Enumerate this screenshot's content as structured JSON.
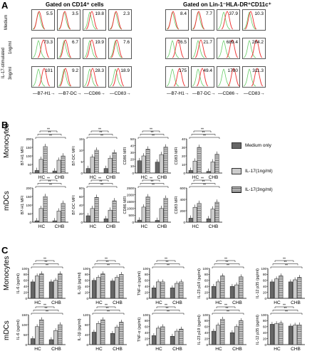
{
  "panelA": {
    "letter": "A",
    "header_left": "Gated on CD14⁺ cells",
    "header_right": "Gated on Lin-1⁻HLA-DR⁺CD11c⁺",
    "row_medium": "Medium",
    "row_stim": "IL-17-stimulated",
    "row_1ng": "1ng/ml",
    "row_3ng": "3ng/ml",
    "markers": [
      "B7-H1",
      "B7-DC",
      "CD86",
      "CD83"
    ],
    "left_values": [
      [
        "5.5",
        "3.5",
        "19.8",
        "2.3"
      ],
      [
        "73.3",
        "6.7",
        "19.9",
        "7.6"
      ],
      [
        "101",
        "9.2",
        "28.3",
        "18.9"
      ]
    ],
    "right_values": [
      [
        "8.4",
        "7.7",
        "37.9",
        "10.3"
      ],
      [
        "76.5",
        "21.7",
        "689.4",
        "284.2"
      ],
      [
        "175",
        "49.4",
        "1780",
        "311.3"
      ]
    ]
  },
  "panelB": {
    "letter": "B",
    "row_labels": [
      "Monocytes",
      "mDCs"
    ],
    "ylabels": [
      "B7-H1 MFI",
      "B7-DC MFI",
      "CD86 MFI",
      "CD83 MFI"
    ],
    "groups": [
      "HC",
      "CHB"
    ],
    "legend": [
      "Medium only",
      "IL-17(1ng/ml)",
      "IL-17(3ng/ml)"
    ],
    "sig": "**"
  },
  "panelC": {
    "letter": "C",
    "row_labels": [
      "Monocytes",
      "mDCs"
    ],
    "ylabels": [
      "IL-6 (pg/ml)",
      "IL-1β (pg/ml)",
      "TNF-α (pg/ml)",
      "IL-23 p19 (pg/ml)",
      "IL-12 p35 (pg/ml)"
    ],
    "groups": [
      "HC",
      "CHB"
    ]
  },
  "chart_data": [
    {
      "type": "bar",
      "panel": "B",
      "row": "Monocytes",
      "ylabel": "B7-H1 MFI",
      "categories": [
        "HC",
        "CHB"
      ],
      "ylim": [
        0,
        200
      ],
      "yticks": [
        "0",
        "50",
        "100",
        "150",
        "200"
      ],
      "series": [
        {
          "name": "Medium only",
          "values": [
            15,
            12
          ]
        },
        {
          "name": "IL-17(1ng/ml)",
          "values": [
            80,
            75
          ]
        },
        {
          "name": "IL-17(3ng/ml)",
          "values": [
            155,
            100
          ]
        }
      ]
    },
    {
      "type": "bar",
      "panel": "B",
      "row": "Monocytes",
      "ylabel": "B7-DC MFI",
      "categories": [
        "HC",
        "CHB"
      ],
      "ylim": [
        0,
        15
      ],
      "yticks": [
        "0",
        "5",
        "10",
        "15"
      ],
      "series": [
        {
          "name": "Medium only",
          "values": [
            2,
            2
          ]
        },
        {
          "name": "IL-17(1ng/ml)",
          "values": [
            7,
            6.5
          ]
        },
        {
          "name": "IL-17(3ng/ml)",
          "values": [
            10,
            9
          ]
        }
      ]
    },
    {
      "type": "bar",
      "panel": "B",
      "row": "Monocytes",
      "ylabel": "CD86 MFI",
      "categories": [
        "HC",
        "CHB"
      ],
      "ylim": [
        0,
        50
      ],
      "yticks": [
        "0",
        "10",
        "20",
        "30",
        "40",
        "50"
      ],
      "series": [
        {
          "name": "Medium only",
          "values": [
            18,
            16
          ]
        },
        {
          "name": "IL-17(1ng/ml)",
          "values": [
            25,
            27
          ]
        },
        {
          "name": "IL-17(3ng/ml)",
          "values": [
            35,
            38
          ]
        }
      ]
    },
    {
      "type": "bar",
      "panel": "B",
      "row": "Monocytes",
      "ylabel": "CD83 MFI",
      "categories": [
        "HC",
        "CHB"
      ],
      "ylim": [
        0,
        40
      ],
      "yticks": [
        "0",
        "10",
        "20",
        "30",
        "40"
      ],
      "series": [
        {
          "name": "Medium only",
          "values": [
            3,
            2
          ]
        },
        {
          "name": "IL-17(1ng/ml)",
          "values": [
            14,
            13
          ]
        },
        {
          "name": "IL-17(3ng/ml)",
          "values": [
            30,
            22
          ]
        }
      ]
    },
    {
      "type": "bar",
      "panel": "B",
      "row": "mDCs",
      "ylabel": "B7-H1 MFI",
      "categories": [
        "HC",
        "CHB"
      ],
      "ylim": [
        0,
        200
      ],
      "yticks": [
        "0",
        "50",
        "100",
        "150",
        "200"
      ],
      "series": [
        {
          "name": "Medium only",
          "values": [
            8,
            8
          ]
        },
        {
          "name": "IL-17(1ng/ml)",
          "values": [
            80,
            65
          ]
        },
        {
          "name": "IL-17(3ng/ml)",
          "values": [
            150,
            110
          ]
        }
      ]
    },
    {
      "type": "bar",
      "panel": "B",
      "row": "mDCs",
      "ylabel": "B7-DC MFI",
      "categories": [
        "HC",
        "CHB"
      ],
      "ylim": [
        0,
        80
      ],
      "yticks": [
        "0",
        "20",
        "40",
        "60",
        "80"
      ],
      "series": [
        {
          "name": "Medium only",
          "values": [
            15,
            8
          ]
        },
        {
          "name": "IL-17(1ng/ml)",
          "values": [
            32,
            28
          ]
        },
        {
          "name": "IL-17(3ng/ml)",
          "values": [
            58,
            50
          ]
        }
      ]
    },
    {
      "type": "bar",
      "panel": "B",
      "row": "mDCs",
      "ylabel": "CD86 MFI",
      "categories": [
        "HC",
        "CHB"
      ],
      "ylim": [
        0,
        2500
      ],
      "yticks": [
        "0",
        "500",
        "1000",
        "1500",
        "2000",
        "2500"
      ],
      "series": [
        {
          "name": "Medium only",
          "values": [
            150,
            130
          ]
        },
        {
          "name": "IL-17(1ng/ml)",
          "values": [
            1100,
            1000
          ]
        },
        {
          "name": "IL-17(3ng/ml)",
          "values": [
            1850,
            1750
          ]
        }
      ]
    },
    {
      "type": "bar",
      "panel": "B",
      "row": "mDCs",
      "ylabel": "CD83 MFI",
      "categories": [
        "HC",
        "CHB"
      ],
      "ylim": [
        0,
        600
      ],
      "yticks": [
        "0",
        "200",
        "400",
        "600"
      ],
      "series": [
        {
          "name": "Medium only",
          "values": [
            70,
            60
          ]
        },
        {
          "name": "IL-17(1ng/ml)",
          "values": [
            260,
            230
          ]
        },
        {
          "name": "IL-17(3ng/ml)",
          "values": [
            330,
            350
          ]
        }
      ]
    },
    {
      "type": "bar",
      "panel": "C",
      "row": "Monocytes",
      "ylabel": "IL-6 (pg/ml)",
      "categories": [
        "HC",
        "CHB"
      ],
      "ylim": [
        0,
        100
      ],
      "yticks": [
        "0",
        "20",
        "40",
        "60",
        "80",
        "100"
      ],
      "series": [
        {
          "name": "Medium only",
          "values": [
            55,
            55
          ]
        },
        {
          "name": "IL-17(1ng/ml)",
          "values": [
            75,
            60
          ]
        },
        {
          "name": "IL-17(3ng/ml)",
          "values": [
            82,
            82
          ]
        }
      ]
    },
    {
      "type": "bar",
      "panel": "C",
      "row": "Monocytes",
      "ylabel": "IL-1β (pg/ml)",
      "categories": [
        "HC",
        "CHB"
      ],
      "ylim": [
        0,
        100
      ],
      "yticks": [
        "0",
        "20",
        "40",
        "60",
        "80",
        "100"
      ],
      "series": [
        {
          "name": "Medium only",
          "values": [
            60,
            58
          ]
        },
        {
          "name": "IL-17(1ng/ml)",
          "values": [
            70,
            70
          ]
        },
        {
          "name": "IL-17(3ng/ml)",
          "values": [
            82,
            80
          ]
        }
      ]
    },
    {
      "type": "bar",
      "panel": "C",
      "row": "Monocytes",
      "ylabel": "TNF-α (pg/ml)",
      "categories": [
        "HC",
        "CHB"
      ],
      "ylim": [
        0,
        100
      ],
      "yticks": [
        "0",
        "20",
        "40",
        "60",
        "80",
        "100"
      ],
      "series": [
        {
          "name": "Medium only",
          "values": [
            35,
            35
          ]
        },
        {
          "name": "IL-17(1ng/ml)",
          "values": [
            55,
            50
          ]
        },
        {
          "name": "IL-17(3ng/ml)",
          "values": [
            55,
            55
          ]
        }
      ]
    },
    {
      "type": "bar",
      "panel": "C",
      "row": "Monocytes",
      "ylabel": "IL-23 p19 (pg/ml)",
      "categories": [
        "HC",
        "CHB"
      ],
      "ylim": [
        0,
        100
      ],
      "yticks": [
        "0",
        "20",
        "40",
        "60",
        "80",
        "100"
      ],
      "series": [
        {
          "name": "Medium only",
          "values": [
            40,
            40
          ]
        },
        {
          "name": "IL-17(1ng/ml)",
          "values": [
            55,
            45
          ]
        },
        {
          "name": "IL-17(3ng/ml)",
          "values": [
            75,
            72
          ]
        }
      ]
    },
    {
      "type": "bar",
      "panel": "C",
      "row": "Monocytes",
      "ylabel": "IL-12 p35 (pg/ml)",
      "categories": [
        "HC",
        "CHB"
      ],
      "ylim": [
        0,
        100
      ],
      "yticks": [
        "0",
        "20",
        "40",
        "60",
        "80",
        "100"
      ],
      "series": [
        {
          "name": "Medium only",
          "values": [
            55,
            55
          ]
        },
        {
          "name": "IL-17(1ng/ml)",
          "values": [
            65,
            62
          ]
        },
        {
          "name": "IL-17(3ng/ml)",
          "values": [
            75,
            70
          ]
        }
      ]
    },
    {
      "type": "bar",
      "panel": "C",
      "row": "mDCs",
      "ylabel": "IL-6 (pg/ml)",
      "categories": [
        "HC",
        "CHB"
      ],
      "ylim": [
        0,
        150
      ],
      "yticks": [
        "0",
        "50",
        "100",
        "150"
      ],
      "series": [
        {
          "name": "Medium only",
          "values": [
            30,
            25
          ]
        },
        {
          "name": "IL-17(1ng/ml)",
          "values": [
            90,
            70
          ]
        },
        {
          "name": "IL-17(3ng/ml)",
          "values": [
            125,
            100
          ]
        }
      ]
    },
    {
      "type": "bar",
      "panel": "C",
      "row": "mDCs",
      "ylabel": "IL-1β (pg/ml)",
      "categories": [
        "HC",
        "CHB"
      ],
      "ylim": [
        0,
        120
      ],
      "yticks": [
        "0",
        "40",
        "80",
        "120"
      ],
      "series": [
        {
          "name": "Medium only",
          "values": [
            50,
            45
          ]
        },
        {
          "name": "IL-17(1ng/ml)",
          "values": [
            85,
            70
          ]
        },
        {
          "name": "IL-17(3ng/ml)",
          "values": [
            100,
            90
          ]
        }
      ]
    },
    {
      "type": "bar",
      "panel": "C",
      "row": "mDCs",
      "ylabel": "TNF-α (pg/ml)",
      "categories": [
        "HC",
        "CHB"
      ],
      "ylim": [
        0,
        100
      ],
      "yticks": [
        "0",
        "20",
        "40",
        "60",
        "80",
        "100"
      ],
      "series": [
        {
          "name": "Medium only",
          "values": [
            30,
            28
          ]
        },
        {
          "name": "IL-17(1ng/ml)",
          "values": [
            55,
            45
          ]
        },
        {
          "name": "IL-17(3ng/ml)",
          "values": [
            60,
            52
          ]
        }
      ]
    },
    {
      "type": "bar",
      "panel": "C",
      "row": "mDCs",
      "ylabel": "IL-23 p19 (pg/ml)",
      "categories": [
        "HC",
        "CHB"
      ],
      "ylim": [
        0,
        100
      ],
      "yticks": [
        "0",
        "20",
        "40",
        "60",
        "80",
        "100"
      ],
      "series": [
        {
          "name": "Medium only",
          "values": [
            45,
            40
          ]
        },
        {
          "name": "IL-17(1ng/ml)",
          "values": [
            65,
            60
          ]
        },
        {
          "name": "IL-17(3ng/ml)",
          "values": [
            85,
            80
          ]
        }
      ]
    },
    {
      "type": "bar",
      "panel": "C",
      "row": "mDCs",
      "ylabel": "IL-12 p35 (pg/ml)",
      "categories": [
        "HC",
        "CHB"
      ],
      "ylim": [
        0,
        100
      ],
      "yticks": [
        "0",
        "20",
        "40",
        "60",
        "80",
        "100"
      ],
      "series": [
        {
          "name": "Medium only",
          "values": [
            68,
            62
          ]
        },
        {
          "name": "IL-17(1ng/ml)",
          "values": [
            70,
            65
          ]
        },
        {
          "name": "IL-17(3ng/ml)",
          "values": [
            72,
            66
          ]
        }
      ]
    }
  ]
}
